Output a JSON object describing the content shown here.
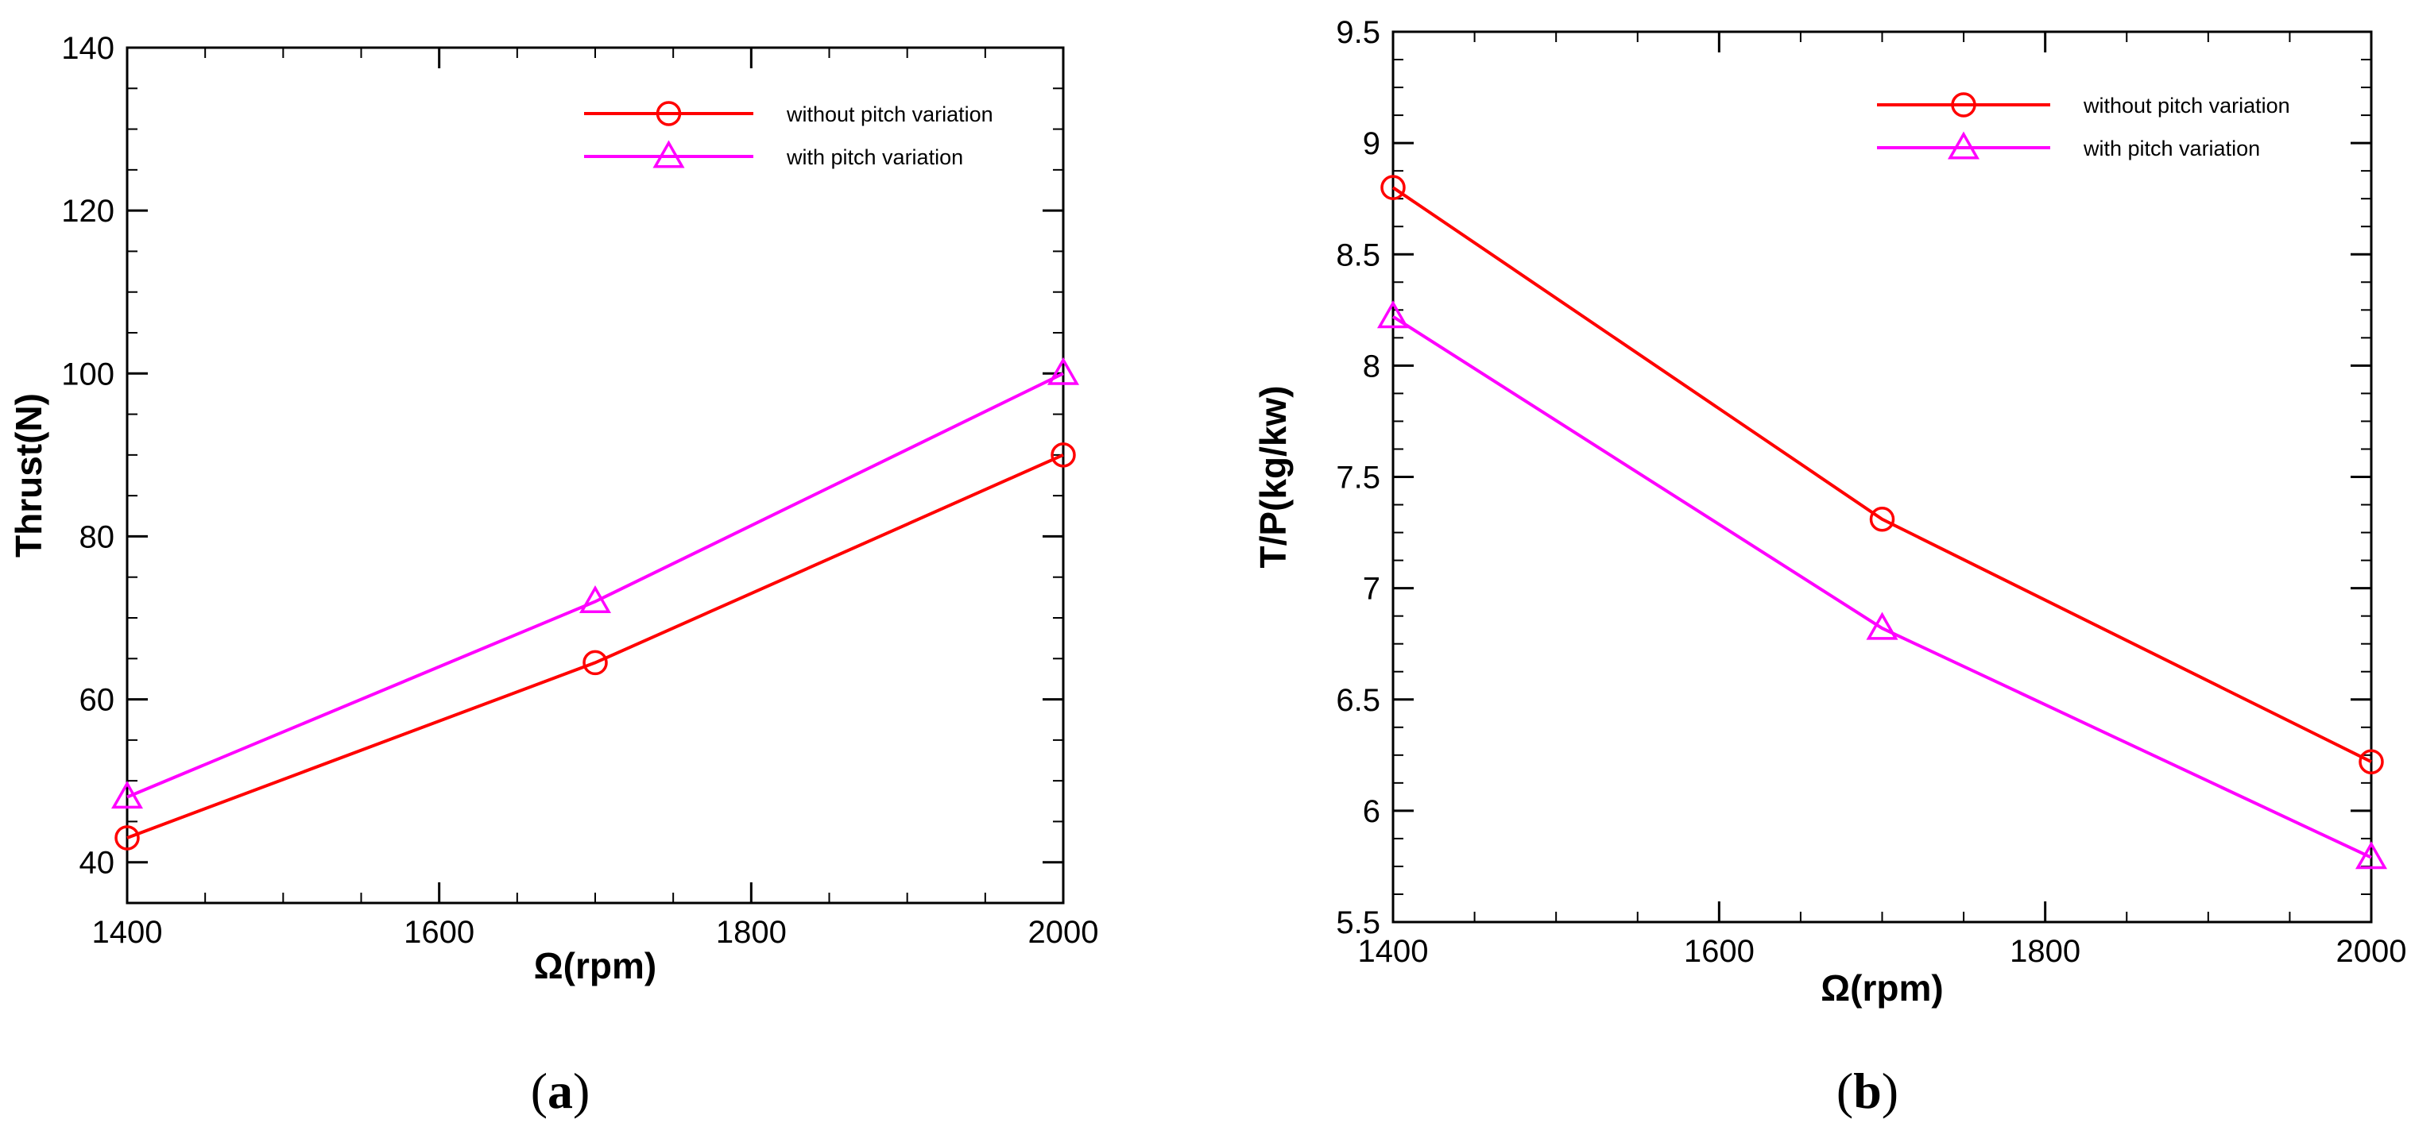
{
  "chart_data": [
    {
      "type": "line",
      "panel_label": "a",
      "xlabel": "Ω(rpm)",
      "ylabel": "Thrust(N)",
      "xlim": [
        1400,
        2000
      ],
      "ylim": [
        35,
        140
      ],
      "xticks": [
        1400,
        1600,
        1800,
        2000
      ],
      "yticks": [
        40,
        60,
        80,
        100,
        120,
        140
      ],
      "x": [
        1400,
        1700,
        2000
      ],
      "series": [
        {
          "name": "without pitch variation",
          "values": [
            43,
            64.5,
            90
          ],
          "color": "#ff0000",
          "marker": "circle"
        },
        {
          "name": "with pitch variation",
          "values": [
            48,
            72,
            100
          ],
          "color": "#ff00ff",
          "marker": "triangle"
        }
      ],
      "legend": "top-right",
      "grid": false
    },
    {
      "type": "line",
      "panel_label": "b",
      "xlabel": "Ω(rpm)",
      "ylabel": "T/P(kg/kw)",
      "xlim": [
        1400,
        2000
      ],
      "ylim": [
        5.5,
        9.5
      ],
      "xticks": [
        1400,
        1600,
        1800,
        2000
      ],
      "yticks": [
        5.5,
        6,
        6.5,
        7,
        7.5,
        8,
        8.5,
        9,
        9.5
      ],
      "x": [
        1400,
        1700,
        2000
      ],
      "series": [
        {
          "name": "without pitch variation",
          "values": [
            8.8,
            7.31,
            6.22
          ],
          "color": "#ff0000",
          "marker": "circle"
        },
        {
          "name": "with pitch variation",
          "values": [
            8.22,
            6.82,
            5.79
          ],
          "color": "#ff00ff",
          "marker": "triangle"
        }
      ],
      "legend": "top-right",
      "grid": false
    }
  ]
}
